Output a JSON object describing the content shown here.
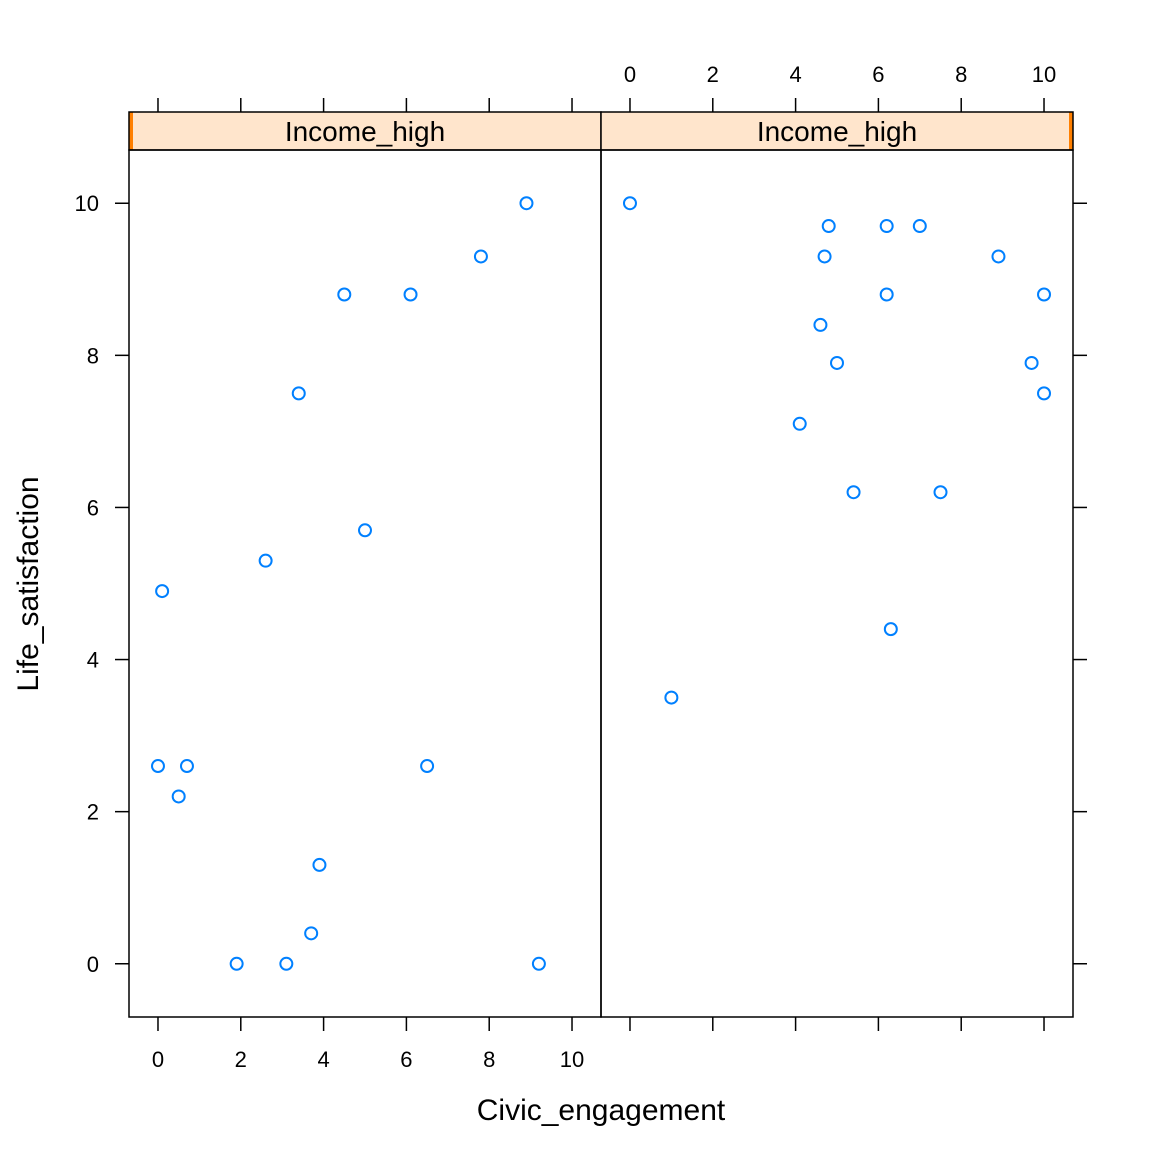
{
  "chart_data": {
    "type": "scatter",
    "layout": "lattice",
    "xlabel": "Civic_engagement",
    "ylabel": "Life_satisfaction",
    "xlim": [
      -0.7,
      10.7
    ],
    "ylim": [
      -0.7,
      10.7
    ],
    "x_ticks": [
      0,
      2,
      4,
      6,
      8,
      10
    ],
    "y_ticks": [
      0,
      2,
      4,
      6,
      8,
      10
    ],
    "grid": false,
    "marker": "open-circle",
    "colors": {
      "point": "#0080ff",
      "strip_fill": "#ffe5cc",
      "strip_level": "#ff7f00",
      "frame": "#000000"
    },
    "panels": [
      {
        "strip_label": "Income_high",
        "strip_level_indicator": "left",
        "points": [
          {
            "x": 8.9,
            "y": 10.0
          },
          {
            "x": 7.8,
            "y": 9.3
          },
          {
            "x": 4.5,
            "y": 8.8
          },
          {
            "x": 6.1,
            "y": 8.8
          },
          {
            "x": 3.4,
            "y": 7.5
          },
          {
            "x": 5.0,
            "y": 5.7
          },
          {
            "x": 2.6,
            "y": 5.3
          },
          {
            "x": 0.1,
            "y": 4.9
          },
          {
            "x": 0.0,
            "y": 2.6
          },
          {
            "x": 0.7,
            "y": 2.6
          },
          {
            "x": 6.5,
            "y": 2.6
          },
          {
            "x": 0.5,
            "y": 2.2
          },
          {
            "x": 3.9,
            "y": 1.3
          },
          {
            "x": 3.7,
            "y": 0.4
          },
          {
            "x": 1.9,
            "y": 0.0
          },
          {
            "x": 3.1,
            "y": 0.0
          },
          {
            "x": 9.2,
            "y": 0.0
          }
        ]
      },
      {
        "strip_label": "Income_high",
        "strip_level_indicator": "right",
        "points": [
          {
            "x": 0.0,
            "y": 10.0
          },
          {
            "x": 4.8,
            "y": 9.7
          },
          {
            "x": 6.2,
            "y": 9.7
          },
          {
            "x": 7.0,
            "y": 9.7
          },
          {
            "x": 4.7,
            "y": 9.3
          },
          {
            "x": 8.9,
            "y": 9.3
          },
          {
            "x": 6.2,
            "y": 8.8
          },
          {
            "x": 10.0,
            "y": 8.8
          },
          {
            "x": 4.6,
            "y": 8.4
          },
          {
            "x": 5.0,
            "y": 7.9
          },
          {
            "x": 9.7,
            "y": 7.9
          },
          {
            "x": 10.0,
            "y": 7.5
          },
          {
            "x": 4.1,
            "y": 7.1
          },
          {
            "x": 5.4,
            "y": 6.2
          },
          {
            "x": 7.5,
            "y": 6.2
          },
          {
            "x": 6.3,
            "y": 4.4
          },
          {
            "x": 1.0,
            "y": 3.5
          }
        ]
      }
    ]
  }
}
